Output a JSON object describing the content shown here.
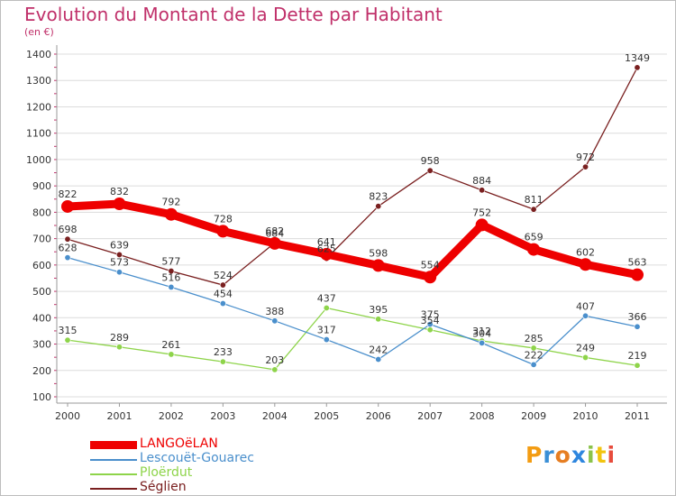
{
  "colors": {
    "title": "#c0306a",
    "grid": "#dcdcdc",
    "axis": "#9a9a9a"
  },
  "logo": {
    "letters": [
      "P",
      "r",
      "o",
      "x",
      "i",
      "t",
      "i"
    ],
    "colors": [
      "#f39c12",
      "#3a8fd6",
      "#e67e22",
      "#2e86de",
      "#8bc34a",
      "#f1c40f",
      "#e74c3c"
    ]
  },
  "chart_data": {
    "type": "line",
    "title": "Evolution du Montant de la Dette par Habitant",
    "subtitle": "(en €)",
    "xlabel": "",
    "ylabel": "",
    "x": [
      "2000",
      "2001",
      "2002",
      "2003",
      "2004",
      "2005",
      "2006",
      "2007",
      "2008",
      "2009",
      "2010",
      "2011"
    ],
    "ylim": [
      100,
      1400
    ],
    "yticks": [
      100,
      200,
      300,
      400,
      500,
      600,
      700,
      800,
      900,
      1000,
      1100,
      1200,
      1300,
      1400
    ],
    "grid": "horizontal",
    "legend": "bottom-left",
    "series": [
      {
        "name": "LANGOëLAN",
        "color": "#ee0000",
        "values": [
          822,
          832,
          792,
          728,
          682,
          641,
          598,
          554,
          752,
          659,
          602,
          563
        ],
        "bold": true
      },
      {
        "name": "Lescouët-Gouarec",
        "color": "#4a8fcc",
        "values": [
          628,
          573,
          516,
          454,
          388,
          317,
          242,
          375,
          304,
          222,
          407,
          366
        ]
      },
      {
        "name": "Ploërdut",
        "color": "#8ed44a",
        "values": [
          315,
          289,
          261,
          233,
          203,
          437,
          395,
          354,
          312,
          285,
          249,
          219
        ]
      },
      {
        "name": "Séglien",
        "color": "#7a2020",
        "values": [
          698,
          639,
          577,
          524,
          684,
          625,
          823,
          958,
          884,
          811,
          972,
          1349
        ]
      }
    ]
  }
}
